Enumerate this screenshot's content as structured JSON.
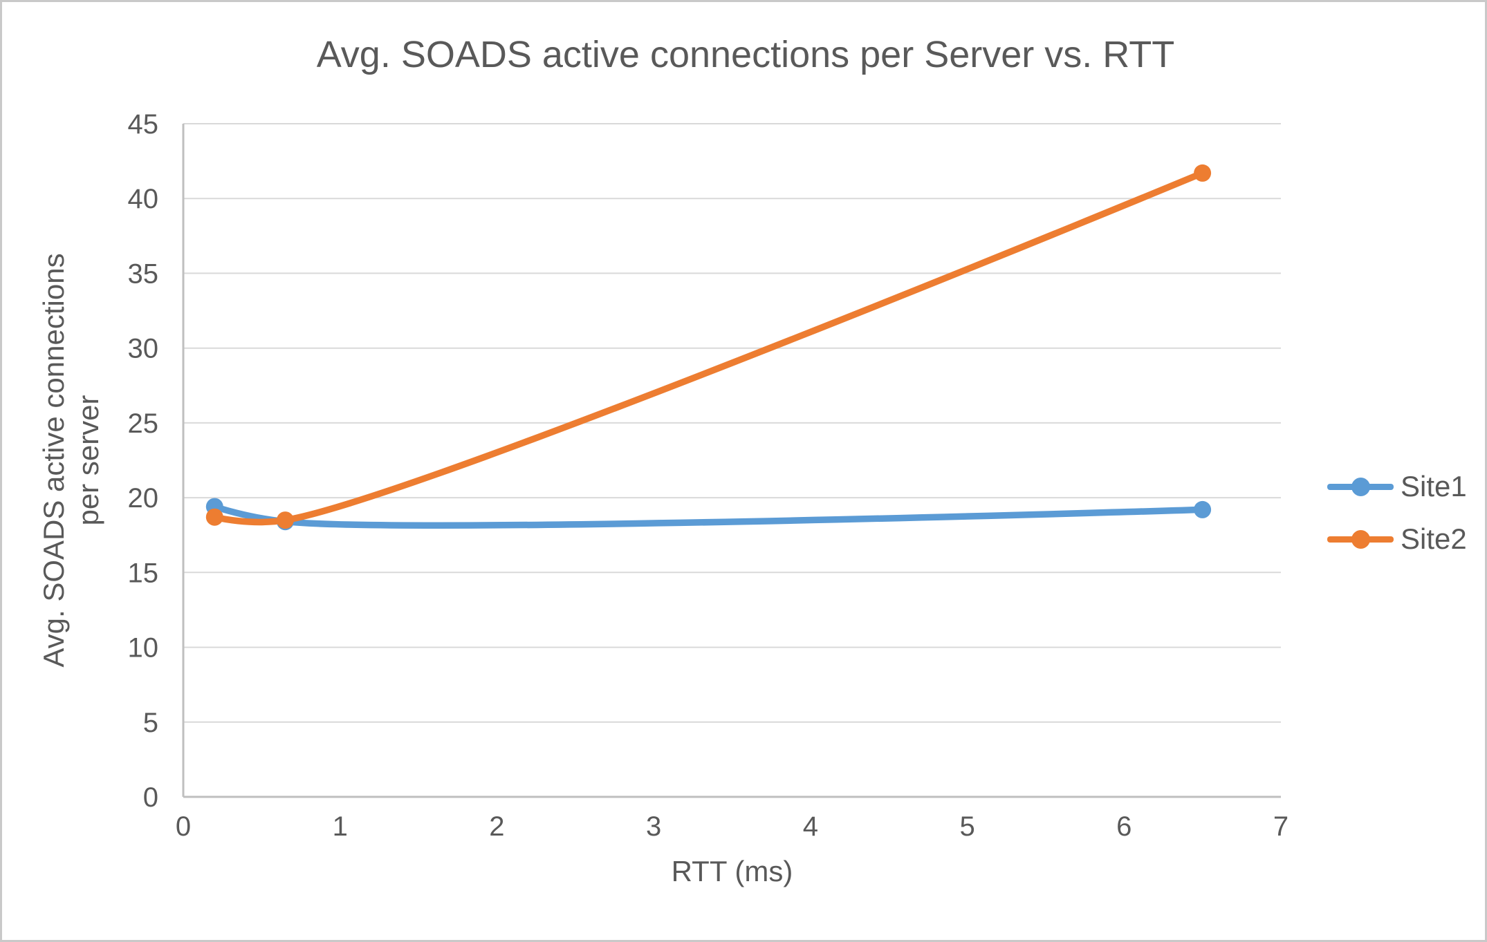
{
  "chart_data": {
    "type": "line",
    "line_style": "smooth_with_markers",
    "title": "Avg. SOADS active connections per Server vs. RTT",
    "xlabel": "RTT (ms)",
    "ylabel": {
      "text": "Avg. SOADS active connections per server",
      "lines": [
        "Avg. SOADS active connections",
        "per server"
      ]
    },
    "xlim": [
      0,
      7
    ],
    "ylim": [
      0,
      45
    ],
    "xticks": [
      0,
      1,
      2,
      3,
      4,
      5,
      6,
      7
    ],
    "yticks": [
      0,
      5,
      10,
      15,
      20,
      25,
      30,
      35,
      40,
      45
    ],
    "grid": "horizontal",
    "legend_position": "right",
    "series": [
      {
        "name": "Site1",
        "color": "#5B9BD5",
        "x": [
          0.2,
          0.65,
          6.5
        ],
        "y": [
          19.4,
          18.4,
          19.2
        ]
      },
      {
        "name": "Site2",
        "color": "#ED7D31",
        "x": [
          0.2,
          0.65,
          6.5
        ],
        "y": [
          18.7,
          18.5,
          41.7
        ]
      }
    ],
    "colors": {
      "gridline": "#D9D9D9",
      "axis": "#BFBFBF",
      "text": "#595959",
      "background": "#FFFFFF",
      "border": "#C9C9C9"
    }
  }
}
